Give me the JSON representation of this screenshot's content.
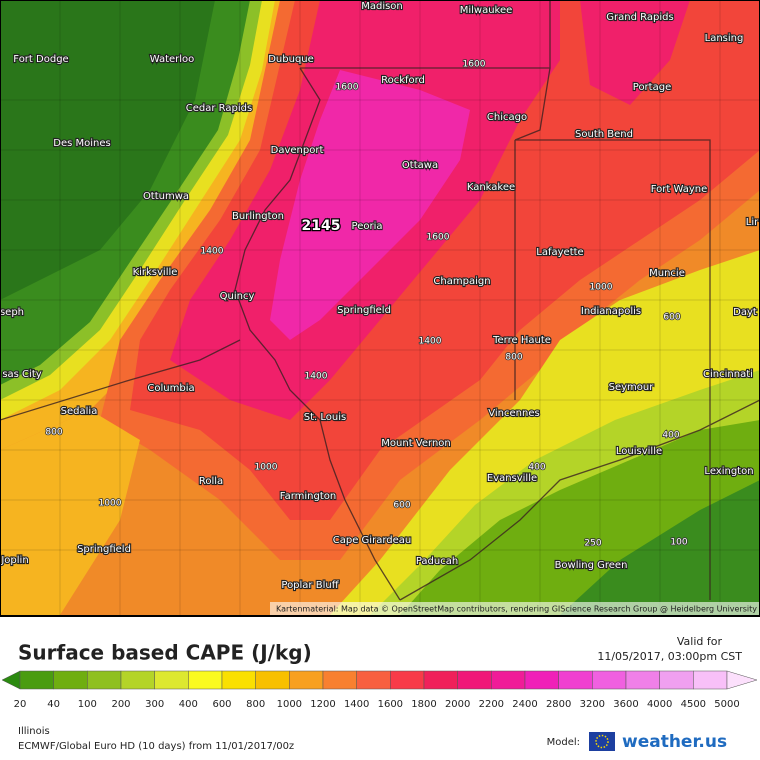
{
  "map": {
    "max_label": "2145",
    "cities": [
      "Madison",
      "Milwaukee",
      "Grand Rapids",
      "Lansing",
      "Fort Dodge",
      "Waterloo",
      "Dubuque",
      "Rockford",
      "Portage",
      "Cedar Rapids",
      "Chicago",
      "South Bend",
      "Des Moines",
      "Davenport",
      "Ottawa",
      "Kankakee",
      "Fort Wayne",
      "Ottumwa",
      "Burlington",
      "Peoria",
      "Lir",
      "Lafayette",
      "Kirksville",
      "Muncie",
      "Champaign",
      "Quincy",
      "Springfield",
      "Indianapolis",
      "seph",
      "Dayt",
      "Terre Haute",
      "sas City",
      "Cincinnati",
      "Columbia",
      "Seymour",
      "Sedalia",
      "Vincennes",
      "St. Louis",
      "Mount Vernon",
      "Louisville",
      "Lexington",
      "Evansville",
      "Rolla",
      "Farmington",
      "Cape Girardeau",
      "Springfield",
      "Joplin",
      "Paducah",
      "Bowling Green",
      "Poplar Bluff"
    ],
    "contour_labels": [
      1600,
      1600,
      1400,
      1600,
      1000,
      600,
      1400,
      800,
      1400,
      800,
      400,
      1000,
      400,
      1000,
      600,
      100,
      250
    ],
    "attribution": "Kartenmaterial: Map data © OpenStreetMap contributors, rendering GIScience Research Group @ Heidelberg University"
  },
  "title": "Surface based CAPE (J/kg)",
  "valid_label": "Valid for",
  "valid_time": "11/05/2017, 03:00pm CST",
  "legend": {
    "labels": [
      20,
      40,
      100,
      200,
      300,
      400,
      600,
      800,
      1000,
      1200,
      1400,
      1600,
      1800,
      2000,
      2200,
      2400,
      2800,
      3200,
      3600,
      4000,
      4500,
      5000
    ],
    "colors": [
      "#2c8a10",
      "#4a9c10",
      "#6fae10",
      "#8fc020",
      "#b4d428",
      "#dde830",
      "#fafa20",
      "#fae000",
      "#f8c000",
      "#f8a020",
      "#f88030",
      "#f86040",
      "#f83a48",
      "#f0205a",
      "#f01878",
      "#f01c98",
      "#f020b8",
      "#f040d0",
      "#f060e0",
      "#f080e8",
      "#f0a0f0",
      "#f8c0f8",
      "#fce0fc"
    ]
  },
  "region": "Illinois",
  "model_run": "ECMWF/Global Euro HD (10 days) from 11/01/2017/00z",
  "model_label": "Model:",
  "brand": "weather.us"
}
